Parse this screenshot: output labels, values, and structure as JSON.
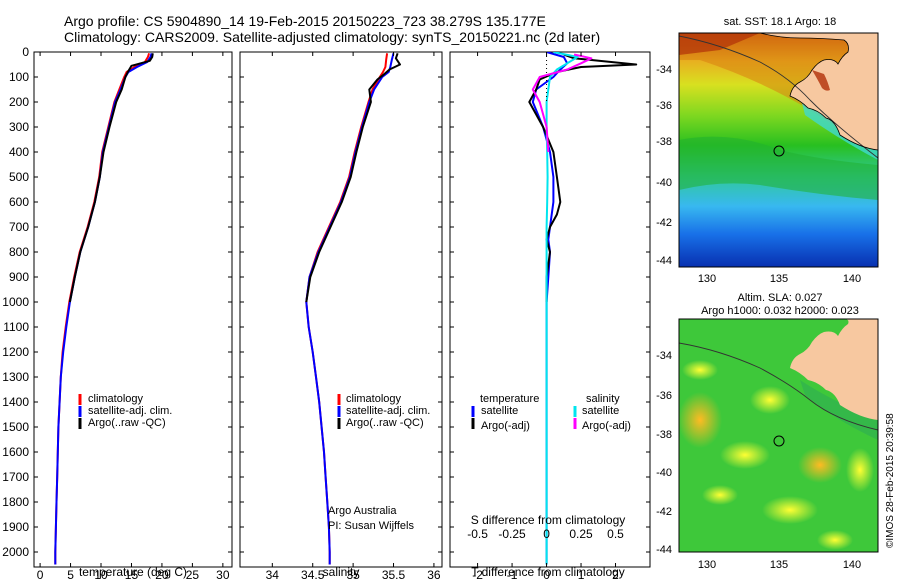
{
  "header": {
    "line1": "Argo profile: CS 5904890_14 19-Feb-2015 20150223_723 38.279S 135.177E",
    "line2": "Climatology: CARS2009. Satellite-adjusted climatology: synTS_20150221.nc (2d later)"
  },
  "colors": {
    "climatology": "#ff0000",
    "satellite": "#0000ff",
    "argo": "#000000",
    "cyan": "#00e5ee",
    "magenta": "#ff00ff"
  },
  "depth_axis": {
    "ticks": [
      0,
      100,
      200,
      300,
      400,
      500,
      600,
      700,
      800,
      900,
      1000,
      1100,
      1200,
      1300,
      1400,
      1500,
      1600,
      1700,
      1800,
      1900,
      2000
    ],
    "tick_labels": [
      "0",
      "100",
      "200",
      "300",
      "400",
      "500",
      "600",
      "700",
      "800",
      "900",
      "1000",
      "1100",
      "1200",
      "1300",
      "1400",
      "1500",
      "1600",
      "1700",
      "1800",
      "1900",
      "2000"
    ],
    "ylim": [
      0,
      2060
    ]
  },
  "chart_data": [
    {
      "type": "line",
      "xlabel": "temperature (deg C)",
      "xlim": [
        -1,
        31.5
      ],
      "xticks": [
        0,
        5,
        10,
        15,
        20,
        25,
        30
      ],
      "xtick_labels": [
        "0",
        "5",
        "10",
        "15",
        "20",
        "25",
        "30"
      ],
      "legend": [
        "climatology",
        "satellite-adj. clim.",
        "Argo(..raw -QC)"
      ],
      "series": [
        {
          "name": "climatology",
          "color": "#ff0000",
          "points": [
            [
              17.9,
              5
            ],
            [
              17.7,
              20
            ],
            [
              17.2,
              40
            ],
            [
              15.5,
              60
            ],
            [
              14.2,
              80
            ],
            [
              13.8,
              100
            ],
            [
              13.0,
              150
            ],
            [
              12.2,
              200
            ],
            [
              11.2,
              300
            ],
            [
              10.2,
              400
            ],
            [
              9.7,
              500
            ],
            [
              8.9,
              600
            ],
            [
              7.8,
              700
            ],
            [
              6.5,
              800
            ],
            [
              5.6,
              900
            ],
            [
              4.8,
              1000
            ],
            [
              4.2,
              1100
            ],
            [
              3.7,
              1200
            ],
            [
              3.4,
              1300
            ],
            [
              3.2,
              1400
            ],
            [
              3.0,
              1500
            ],
            [
              2.9,
              1600
            ],
            [
              2.8,
              1700
            ],
            [
              2.7,
              1800
            ],
            [
              2.6,
              1900
            ],
            [
              2.5,
              2000
            ],
            [
              2.5,
              2050
            ]
          ]
        },
        {
          "name": "satellite-adj. clim.",
          "color": "#0000ff",
          "points": [
            [
              18.3,
              5
            ],
            [
              18.1,
              20
            ],
            [
              17.6,
              40
            ],
            [
              15.9,
              60
            ],
            [
              14.5,
              80
            ],
            [
              14.0,
              100
            ],
            [
              13.2,
              150
            ],
            [
              12.3,
              200
            ],
            [
              11.3,
              300
            ],
            [
              10.3,
              400
            ],
            [
              9.8,
              500
            ],
            [
              9.0,
              600
            ],
            [
              7.9,
              700
            ],
            [
              6.6,
              800
            ],
            [
              5.7,
              900
            ],
            [
              4.9,
              1000
            ],
            [
              4.3,
              1100
            ],
            [
              3.8,
              1200
            ],
            [
              3.4,
              1300
            ],
            [
              3.2,
              1400
            ],
            [
              3.0,
              1500
            ],
            [
              2.9,
              1600
            ],
            [
              2.8,
              1700
            ],
            [
              2.7,
              1800
            ],
            [
              2.6,
              1900
            ],
            [
              2.5,
              2000
            ],
            [
              2.5,
              2050
            ]
          ]
        },
        {
          "name": "Argo(..raw -QC)",
          "color": "#000000",
          "points": [
            [
              18.5,
              5
            ],
            [
              18.4,
              20
            ],
            [
              18.0,
              35
            ],
            [
              15.0,
              55
            ],
            [
              14.4,
              80
            ],
            [
              14.0,
              100
            ],
            [
              13.4,
              150
            ],
            [
              12.5,
              200
            ],
            [
              11.4,
              300
            ],
            [
              10.4,
              400
            ],
            [
              9.8,
              500
            ],
            [
              9.0,
              600
            ],
            [
              7.9,
              700
            ],
            [
              6.6,
              800
            ],
            [
              5.7,
              900
            ],
            [
              4.9,
              1000
            ]
          ]
        }
      ]
    },
    {
      "type": "line",
      "xlabel": "salinity",
      "xlim": [
        33.6,
        36.1
      ],
      "xticks": [
        34,
        34.5,
        35,
        35.5,
        36
      ],
      "xtick_labels": [
        "34",
        "34.5",
        "35",
        "35.5",
        "36"
      ],
      "legend": [
        "climatology",
        "satellite-adj. clim.",
        "Argo(..raw -QC)"
      ],
      "annotations": [
        "Argo Australia",
        "PI: Susan Wijffels"
      ],
      "series": [
        {
          "name": "climatology",
          "color": "#ff0000",
          "points": [
            [
              35.42,
              5
            ],
            [
              35.41,
              30
            ],
            [
              35.4,
              60
            ],
            [
              35.37,
              80
            ],
            [
              35.33,
              100
            ],
            [
              35.24,
              150
            ],
            [
              35.19,
              200
            ],
            [
              35.1,
              300
            ],
            [
              35.02,
              400
            ],
            [
              34.95,
              500
            ],
            [
              34.84,
              600
            ],
            [
              34.7,
              700
            ],
            [
              34.56,
              800
            ],
            [
              34.46,
              900
            ],
            [
              34.42,
              1000
            ],
            [
              34.45,
              1100
            ],
            [
              34.5,
              1200
            ],
            [
              34.54,
              1300
            ],
            [
              34.58,
              1400
            ],
            [
              34.61,
              1500
            ],
            [
              34.64,
              1600
            ],
            [
              34.66,
              1700
            ],
            [
              34.68,
              1800
            ],
            [
              34.7,
              1900
            ],
            [
              34.71,
              2000
            ],
            [
              34.71,
              2050
            ]
          ]
        },
        {
          "name": "satellite-adj. clim.",
          "color": "#0000ff",
          "points": [
            [
              35.5,
              5
            ],
            [
              35.48,
              30
            ],
            [
              35.46,
              60
            ],
            [
              35.44,
              80
            ],
            [
              35.36,
              100
            ],
            [
              35.26,
              150
            ],
            [
              35.2,
              200
            ],
            [
              35.11,
              300
            ],
            [
              35.03,
              400
            ],
            [
              34.96,
              500
            ],
            [
              34.85,
              600
            ],
            [
              34.71,
              700
            ],
            [
              34.57,
              800
            ],
            [
              34.46,
              900
            ],
            [
              34.42,
              1000
            ],
            [
              34.45,
              1100
            ],
            [
              34.5,
              1200
            ],
            [
              34.54,
              1300
            ],
            [
              34.58,
              1400
            ],
            [
              34.61,
              1500
            ],
            [
              34.64,
              1600
            ],
            [
              34.66,
              1700
            ],
            [
              34.68,
              1800
            ],
            [
              34.7,
              1900
            ],
            [
              34.71,
              2000
            ],
            [
              34.71,
              2050
            ]
          ]
        },
        {
          "name": "Argo(..raw -QC)",
          "color": "#000000",
          "points": [
            [
              35.55,
              5
            ],
            [
              35.53,
              25
            ],
            [
              35.58,
              50
            ],
            [
              35.45,
              70
            ],
            [
              35.38,
              90
            ],
            [
              35.3,
              110
            ],
            [
              35.2,
              150
            ],
            [
              35.22,
              200
            ],
            [
              35.12,
              300
            ],
            [
              35.04,
              400
            ],
            [
              34.97,
              500
            ],
            [
              34.86,
              600
            ],
            [
              34.72,
              700
            ],
            [
              34.58,
              800
            ],
            [
              34.47,
              900
            ],
            [
              34.42,
              1000
            ]
          ]
        }
      ]
    },
    {
      "type": "line",
      "xlabel": "T difference from climatology",
      "xlabel_top": "S difference from climatology",
      "xlim": [
        -2.8,
        3.0
      ],
      "xticks": [
        -2,
        -1,
        0,
        1,
        2
      ],
      "xtick_labels": [
        "-2",
        "-1",
        "0",
        "1",
        "2"
      ],
      "top_ticks": [
        -0.5,
        -0.25,
        0,
        0.25,
        0.5
      ],
      "top_tick_labels": [
        "-0.5",
        "-0.25",
        "0",
        "0.25",
        "0.5"
      ],
      "legend_temperature_title": "temperature",
      "legend_salinity_title": "salinity",
      "legend": [
        "satellite",
        "Argo(-adj)",
        "satellite",
        "Argo(-adj)"
      ],
      "series": [
        {
          "name": "satellite",
          "color": "#0000ff",
          "points": [
            [
              0,
              0
            ],
            [
              0.5,
              20
            ],
            [
              0.6,
              45
            ],
            [
              0.4,
              70
            ],
            [
              0.2,
              100
            ],
            [
              -0.3,
              150
            ],
            [
              -0.4,
              200
            ],
            [
              -0.1,
              300
            ],
            [
              0.1,
              400
            ],
            [
              0.2,
              500
            ],
            [
              0.2,
              600
            ],
            [
              0.1,
              700
            ],
            [
              0.05,
              750
            ],
            [
              0.1,
              800
            ],
            [
              0.05,
              900
            ],
            [
              0.0,
              1000
            ],
            [
              0.0,
              2050
            ]
          ]
        },
        {
          "name": "Argo(-adj)",
          "color": "#000000",
          "points": [
            [
              0.5,
              10
            ],
            [
              0.8,
              25
            ],
            [
              2.6,
              50
            ],
            [
              1.0,
              60
            ],
            [
              0.3,
              80
            ],
            [
              -0.2,
              110
            ],
            [
              -0.3,
              150
            ],
            [
              -0.5,
              200
            ],
            [
              -0.1,
              300
            ],
            [
              0.2,
              400
            ],
            [
              0.3,
              500
            ],
            [
              0.4,
              600
            ],
            [
              0.3,
              650
            ],
            [
              0.1,
              700
            ],
            [
              0.0,
              750
            ],
            [
              0.1,
              800
            ],
            [
              0.0,
              900
            ],
            [
              0.0,
              1000
            ]
          ]
        },
        {
          "name": "satellite",
          "color": "#00e5ee",
          "points": [
            [
              0.2,
              0
            ],
            [
              0.9,
              20
            ],
            [
              0.6,
              45
            ],
            [
              0.3,
              70
            ],
            [
              0.1,
              100
            ],
            [
              0.05,
              150
            ],
            [
              0.0,
              200
            ],
            [
              0.0,
              300
            ],
            [
              0.02,
              400
            ],
            [
              0.03,
              500
            ],
            [
              0.02,
              600
            ],
            [
              0.0,
              700
            ],
            [
              0.0,
              2050
            ]
          ]
        },
        {
          "name": "Argo(-adj)",
          "color": "#ff00ff",
          "points": [
            [
              0.8,
              10
            ],
            [
              1.3,
              25
            ],
            [
              1.0,
              45
            ],
            [
              0.6,
              70
            ],
            [
              -0.2,
              100
            ],
            [
              -0.4,
              150
            ],
            [
              -0.2,
              200
            ],
            [
              0.0,
              300
            ],
            [
              0.05,
              400
            ]
          ]
        }
      ]
    }
  ],
  "maps": {
    "sst": {
      "title": "sat. SST: 18.1 Argo: 18",
      "xticks": [
        "130",
        "135",
        "140"
      ],
      "yticks": [
        "-34",
        "-36",
        "-38",
        "-40",
        "-42",
        "-44"
      ]
    },
    "sla": {
      "title1": "Altim. SLA: 0.027",
      "title2": "Argo h1000: 0.032 h2000: 0.023",
      "xticks": [
        "130",
        "135",
        "140"
      ],
      "yticks": [
        "-34",
        "-36",
        "-38",
        "-40",
        "-42",
        "-44"
      ]
    },
    "credit": "©IMOS 28-Feb-2015 20:39:58"
  }
}
